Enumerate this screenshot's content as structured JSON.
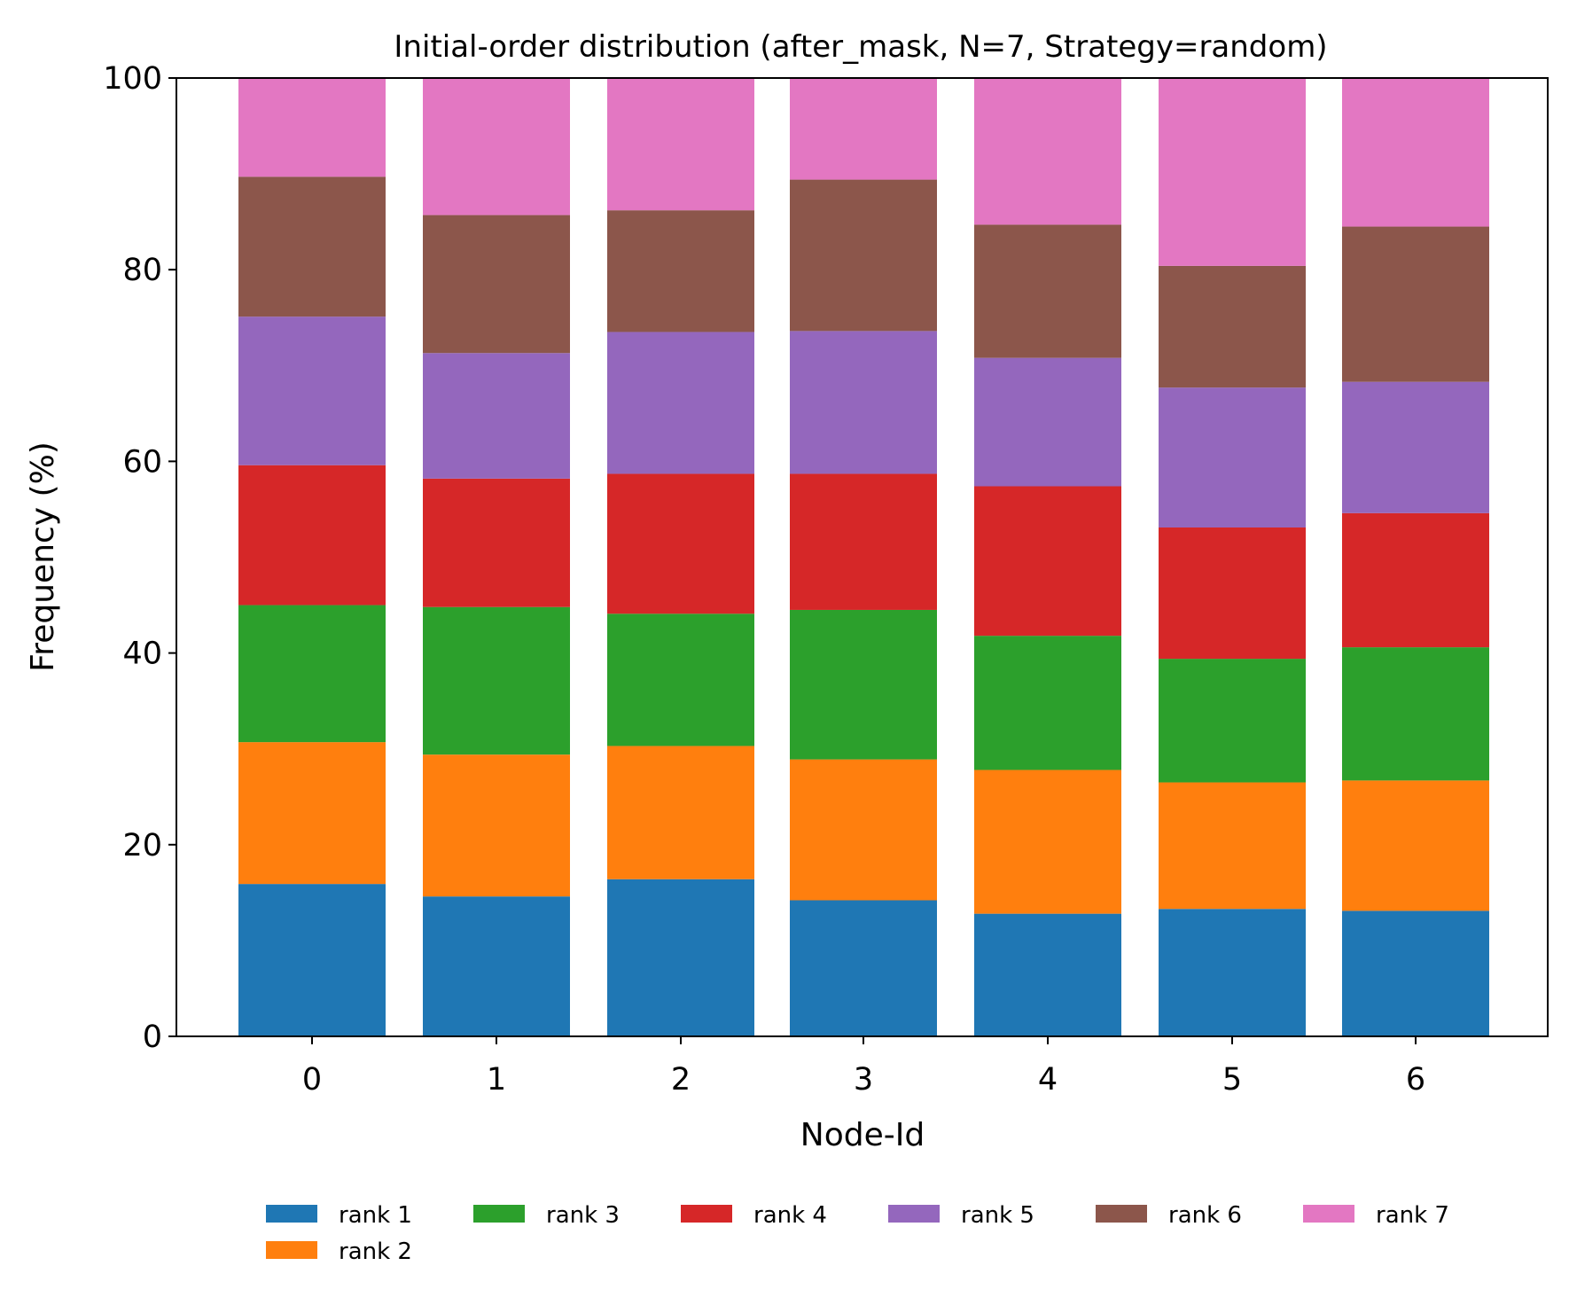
{
  "chart_data": {
    "type": "bar",
    "stacked": true,
    "title": "Initial-order distribution (after_mask, N=7, Strategy=random)",
    "xlabel": "Node-Id",
    "ylabel": "Frequency (%)",
    "categories": [
      "0",
      "1",
      "2",
      "3",
      "4",
      "5",
      "6"
    ],
    "ylim": [
      0,
      100
    ],
    "yticks": [
      0,
      20,
      40,
      60,
      80,
      100
    ],
    "grid": false,
    "legend_position": "bottom-center",
    "series": [
      {
        "name": "rank 1",
        "color": "#1f77b4",
        "values": [
          15.9,
          14.6,
          16.4,
          14.2,
          12.8,
          13.3,
          13.1
        ]
      },
      {
        "name": "rank 2",
        "color": "#ff7f0e",
        "values": [
          14.8,
          14.8,
          13.9,
          14.7,
          15.0,
          13.2,
          13.6
        ]
      },
      {
        "name": "rank 3",
        "color": "#2ca02c",
        "values": [
          14.3,
          15.4,
          13.8,
          15.6,
          14.0,
          12.9,
          13.9
        ]
      },
      {
        "name": "rank 4",
        "color": "#d62728",
        "values": [
          14.6,
          13.4,
          14.6,
          14.2,
          15.6,
          13.7,
          14.0
        ]
      },
      {
        "name": "rank 5",
        "color": "#9467bd",
        "values": [
          15.5,
          13.1,
          14.8,
          14.9,
          13.4,
          14.6,
          13.7
        ]
      },
      {
        "name": "rank 6",
        "color": "#8c564b",
        "values": [
          14.6,
          14.4,
          12.7,
          15.8,
          13.9,
          12.7,
          16.2
        ]
      },
      {
        "name": "rank 7",
        "color": "#e377c2",
        "values": [
          10.3,
          14.3,
          13.8,
          10.6,
          15.3,
          19.6,
          15.5
        ]
      }
    ]
  }
}
